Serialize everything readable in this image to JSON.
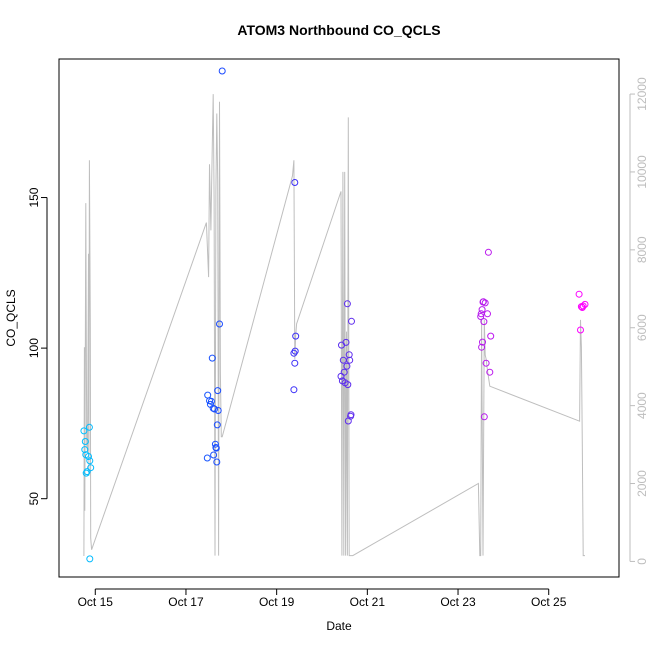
{
  "chart_data": {
    "type": "scatter",
    "title": "ATOM3 Northbound CO_QCLS",
    "xlabel": "Date",
    "ylabel": "CO_QCLS",
    "x_unit": "day of October",
    "xlim": [
      14.2,
      26.55
    ],
    "ylim": [
      24,
      196
    ],
    "x_ticks": [
      15,
      17,
      19,
      21,
      23,
      25
    ],
    "x_tick_labels": [
      "Oct 15",
      "Oct 17",
      "Oct 19",
      "Oct 21",
      "Oct 23",
      "Oct 25"
    ],
    "y_ticks": [
      50,
      100,
      150
    ],
    "y_tick_labels": [
      "50",
      "100",
      "150"
    ],
    "y2lim": [
      -400,
      12900
    ],
    "y2_ticks": [
      0,
      2000,
      4000,
      6000,
      8000,
      10000,
      12000
    ],
    "y2_tick_labels": [
      "0",
      "2000",
      "4000",
      "6000",
      "8000",
      "10000",
      "12000"
    ],
    "grid": false,
    "legend": "none",
    "line_color": "#bebebe",
    "points_color_gradient": [
      "#00c0ff",
      "#2030ff",
      "#8a2be2",
      "#ff00ff"
    ],
    "series": [
      {
        "values": [
          [
            14.75,
            72.5
          ],
          [
            14.77,
            66.3
          ],
          [
            14.78,
            69
          ],
          [
            14.79,
            64.6
          ],
          [
            14.8,
            58.5
          ],
          [
            14.82,
            59
          ],
          [
            14.85,
            64
          ],
          [
            14.87,
            73.7
          ],
          [
            14.88,
            62.6
          ],
          [
            14.9,
            60.3
          ],
          [
            14.88,
            30
          ],
          [
            17.47,
            63.5
          ],
          [
            17.48,
            84.4
          ],
          [
            17.52,
            82.5
          ],
          [
            17.54,
            81.3
          ],
          [
            17.56,
            82.3
          ],
          [
            17.58,
            96.7
          ],
          [
            17.6,
            80
          ],
          [
            17.61,
            64.5
          ],
          [
            17.63,
            79.8
          ],
          [
            17.65,
            68.1
          ],
          [
            17.66,
            67
          ],
          [
            17.67,
            66.8
          ],
          [
            17.68,
            62.2
          ],
          [
            17.69,
            74.5
          ],
          [
            17.7,
            85.9
          ],
          [
            17.71,
            79.3
          ],
          [
            17.74,
            108
          ],
          [
            17.8,
            192
          ],
          [
            19.4,
            155
          ],
          [
            19.38,
            98.3
          ],
          [
            19.4,
            95
          ],
          [
            19.41,
            99
          ],
          [
            19.42,
            104
          ],
          [
            19.38,
            86.2
          ],
          [
            20.42,
            90.6
          ],
          [
            20.43,
            101
          ],
          [
            20.45,
            89.1
          ],
          [
            20.47,
            96
          ],
          [
            20.49,
            92
          ],
          [
            20.51,
            88.5
          ],
          [
            20.53,
            101.9
          ],
          [
            20.55,
            94
          ],
          [
            20.56,
            114.7
          ],
          [
            20.57,
            87.9
          ],
          [
            20.58,
            75.8
          ],
          [
            20.6,
            97.8
          ],
          [
            20.61,
            96
          ],
          [
            20.63,
            77.4
          ],
          [
            20.64,
            77.9
          ],
          [
            20.65,
            108.9
          ],
          [
            23.5,
            110.5
          ],
          [
            23.51,
            111.4
          ],
          [
            23.52,
            100.3
          ],
          [
            23.53,
            112.8
          ],
          [
            23.54,
            102
          ],
          [
            23.55,
            115.3
          ],
          [
            23.56,
            115.4
          ],
          [
            23.57,
            108.8
          ],
          [
            23.58,
            77.2
          ],
          [
            23.6,
            115
          ],
          [
            23.62,
            95
          ],
          [
            23.65,
            111.4
          ],
          [
            23.67,
            131.8
          ],
          [
            23.7,
            92
          ],
          [
            23.72,
            104
          ],
          [
            25.67,
            117.9
          ],
          [
            25.7,
            106
          ],
          [
            25.72,
            113.8
          ],
          [
            25.74,
            113.5
          ],
          [
            25.76,
            114
          ],
          [
            25.8,
            114.5
          ]
        ]
      },
      {
        "axis": "right",
        "x": [
          14.75,
          14.76,
          14.77,
          14.79,
          14.81,
          14.83,
          14.85,
          14.86,
          14.87,
          14.89,
          14.9,
          14.92,
          17.45,
          17.5,
          17.52,
          17.55,
          17.58,
          17.6,
          17.62,
          17.64,
          17.66,
          17.68,
          17.7,
          17.72,
          17.74,
          17.76,
          17.78,
          17.79,
          17.8,
          19.35,
          19.38,
          19.4,
          19.42,
          19.44,
          20.42,
          20.44,
          20.46,
          20.48,
          20.5,
          20.52,
          20.54,
          20.56,
          20.58,
          20.6,
          20.62,
          20.64,
          20.66,
          20.68,
          23.45,
          23.48,
          23.5,
          23.52,
          23.55,
          23.58,
          23.6,
          23.62,
          23.65,
          23.7,
          25.68,
          25.7,
          25.72,
          25.74,
          25.76,
          25.78,
          25.8
        ],
        "values": [
          140,
          5500,
          1300,
          9200,
          3000,
          2800,
          7900,
          2200,
          10300,
          6100,
          600,
          300,
          8700,
          7300,
          10200,
          8500,
          10700,
          12000,
          9300,
          150,
          9500,
          11500,
          9800,
          150,
          11800,
          4800,
          3200,
          3200,
          3200,
          9900,
          10300,
          5200,
          5800,
          6100,
          9500,
          150,
          10000,
          150,
          10000,
          150,
          5900,
          150,
          11400,
          150,
          150,
          150,
          150,
          150,
          2000,
          150,
          150,
          6200,
          150,
          6200,
          5300,
          5200,
          4900,
          4500,
          3600,
          6200,
          5500,
          3000,
          150,
          150,
          150
        ]
      }
    ]
  }
}
